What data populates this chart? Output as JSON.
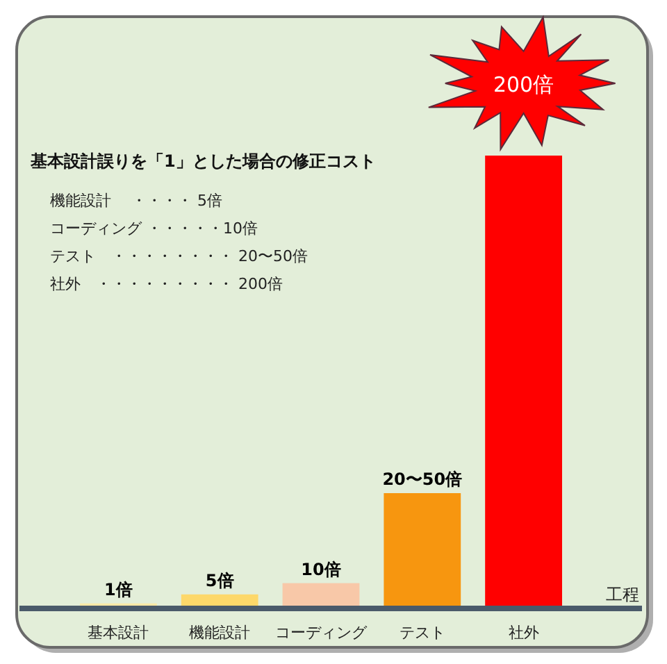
{
  "chart_data": {
    "type": "bar",
    "title": "基本設計誤りを「1」とした場合の修正コスト",
    "xlabel": "工程",
    "categories": [
      "基本設計",
      "機能設計",
      "コーディング",
      "テスト",
      "社外"
    ],
    "values": [
      1,
      5,
      10,
      50,
      200
    ],
    "colors": [
      "#fde9a6",
      "#fdd86a",
      "#f8c8a8",
      "#f7960f",
      "#ff0000"
    ],
    "value_labels": [
      "1倍",
      "5倍",
      "10倍",
      "20〜50倍",
      "200倍"
    ],
    "annotations": [
      "機能設計　 ・・・・ 5倍",
      "コーディング ・・・・・10倍",
      "テスト　・・・・・・・・ 20〜50倍",
      "社外　・・・・・・・・・ 200倍"
    ]
  }
}
